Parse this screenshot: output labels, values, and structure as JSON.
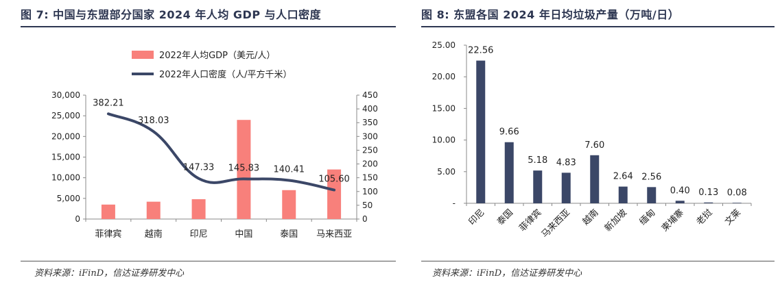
{
  "figures": {
    "left": {
      "title": "图 7:  中国与东盟部分国家 2024 年人均 GDP 与人口密度",
      "source": "资料来源：iFinD，信达证券研发中心"
    },
    "right": {
      "title": "图 8:  东盟各国 2024  年日均垃圾产量（万吨/日）",
      "source": "资料来源：iFinD，信达证券研发中心"
    }
  },
  "colors": {
    "bar_gdp": "#f8807b",
    "line_density": "#3b4767",
    "bar_waste": "#3b4767",
    "title": "#2d3651"
  },
  "chart_data": [
    {
      "type": "bar+line",
      "categories": [
        "菲律宾",
        "越南",
        "印尼",
        "中国",
        "泰国",
        "马来西亚"
      ],
      "series": [
        {
          "name": "2022年人均GDP（美元/人）",
          "type": "bar",
          "axis": "left",
          "values": [
            3500,
            4200,
            4800,
            24000,
            7000,
            12000
          ]
        },
        {
          "name": "2022年人口密度（人/平方千米）",
          "type": "line",
          "axis": "right",
          "smooth": true,
          "values": [
            382.21,
            318.03,
            147.33,
            145.83,
            140.41,
            105.6
          ],
          "labels": [
            "382.21",
            "318.03",
            "147.33",
            "145.83",
            "140.41",
            "105.60"
          ]
        }
      ],
      "ylim_left": [
        0,
        30000
      ],
      "yticks_left": [
        0,
        5000,
        10000,
        15000,
        20000,
        25000,
        30000
      ],
      "yticklabels_left": [
        "0",
        "5,000",
        "10,000",
        "15,000",
        "20,000",
        "25,000",
        "30,000"
      ],
      "ylim_right": [
        0,
        450
      ],
      "yticks_right": [
        0,
        50,
        100,
        150,
        200,
        250,
        300,
        350,
        400,
        450
      ],
      "yticklabels_right": [
        "0",
        "50",
        "100",
        "150",
        "200",
        "250",
        "300",
        "350",
        "400",
        "450"
      ],
      "legend_position": "top-left",
      "grid": false
    },
    {
      "type": "bar",
      "categories": [
        "印尼",
        "泰国",
        "菲律宾",
        "马来西亚",
        "越南",
        "新加坡",
        "缅甸",
        "柬埔寨",
        "老挝",
        "文莱"
      ],
      "values": [
        22.56,
        9.66,
        5.18,
        4.83,
        7.6,
        2.64,
        2.56,
        0.4,
        0.13,
        0.08
      ],
      "labels": [
        "22.56",
        "9.66",
        "5.18",
        "4.83",
        "7.60",
        "2.64",
        "2.56",
        "0.40",
        "0.13",
        "0.08"
      ],
      "ylim": [
        0,
        25
      ],
      "yticks": [
        0,
        5,
        10,
        15,
        20,
        25
      ],
      "yticklabels": [
        "-",
        "5.00",
        "10.00",
        "15.00",
        "20.00",
        "25.00"
      ],
      "grid": false
    }
  ]
}
